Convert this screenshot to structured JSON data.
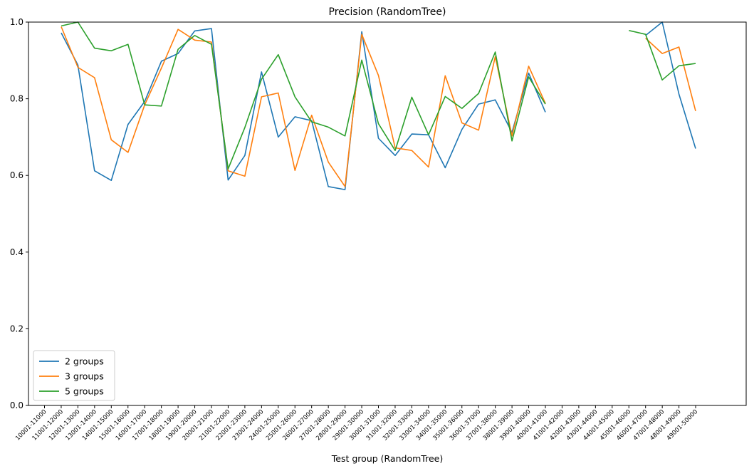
{
  "chart_data": {
    "type": "line",
    "title": "Precision (RandomTree)",
    "xlabel": "Test group (RandomTree)",
    "ylabel": "",
    "ylim": [
      0,
      1.0
    ],
    "yticks": [
      "0.0",
      "0.2",
      "0.4",
      "0.6",
      "0.8",
      "1.0"
    ],
    "grid": false,
    "legend_position": "lower-left",
    "categories": [
      "10001-11000",
      "11001-12000",
      "12001-13000",
      "13001-14000",
      "14001-15000",
      "15001-16000",
      "16001-17000",
      "17001-18000",
      "18001-19000",
      "19001-20000",
      "20001-21000",
      "21001-22000",
      "22001-23000",
      "23001-24000",
      "24001-25000",
      "25001-26000",
      "26001-27000",
      "27001-28000",
      "28001-29000",
      "29001-30000",
      "30001-31000",
      "31001-32000",
      "32001-33000",
      "33001-34000",
      "34001-35000",
      "35001-36000",
      "36001-37000",
      "37001-38000",
      "38001-39000",
      "39001-40000",
      "40001-41000",
      "41001-42000",
      "42001-43000",
      "43001-44000",
      "44001-45000",
      "45001-46000",
      "46001-47000",
      "47001-48000",
      "48001-49000",
      "49001-50000"
    ],
    "series": [
      {
        "name": "2 groups",
        "color": "#1f77b4",
        "values": [
          null,
          0.972,
          0.888,
          0.612,
          0.587,
          0.733,
          0.793,
          0.898,
          0.918,
          0.977,
          0.983,
          0.588,
          0.652,
          0.87,
          0.7,
          0.753,
          0.743,
          0.571,
          0.563,
          0.975,
          0.697,
          0.652,
          0.708,
          0.706,
          0.62,
          0.72,
          0.786,
          0.797,
          0.712,
          0.867,
          0.765,
          null,
          null,
          null,
          null,
          null,
          0.965,
          1.0,
          0.812,
          0.67
        ]
      },
      {
        "name": "3 groups",
        "color": "#ff7f0e",
        "values": [
          null,
          0.988,
          0.882,
          0.855,
          0.693,
          0.66,
          0.784,
          0.88,
          0.981,
          0.953,
          0.948,
          0.612,
          0.598,
          0.805,
          0.815,
          0.613,
          0.757,
          0.635,
          0.571,
          0.968,
          0.861,
          0.672,
          0.665,
          0.622,
          0.86,
          0.737,
          0.718,
          0.91,
          0.703,
          0.885,
          0.788,
          null,
          null,
          null,
          null,
          null,
          0.958,
          0.918,
          0.935,
          0.768
        ]
      },
      {
        "name": "5 groups",
        "color": "#2ca02c",
        "values": [
          null,
          0.99,
          1.0,
          0.932,
          0.925,
          0.942,
          0.784,
          0.781,
          0.929,
          0.965,
          0.942,
          0.617,
          0.725,
          0.851,
          0.915,
          0.805,
          0.74,
          0.726,
          0.703,
          0.901,
          0.735,
          0.665,
          0.804,
          0.706,
          0.806,
          0.775,
          0.814,
          0.922,
          0.69,
          0.857,
          0.786,
          null,
          null,
          null,
          null,
          0.978,
          0.968,
          0.849,
          0.886,
          0.892
        ]
      }
    ]
  }
}
